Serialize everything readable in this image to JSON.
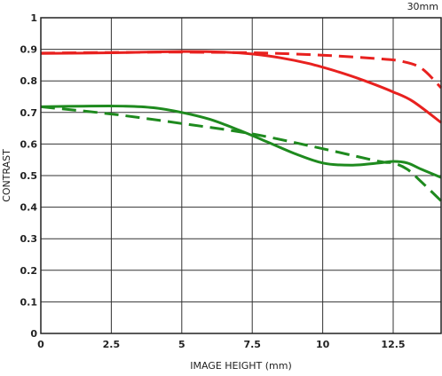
{
  "chart_data": {
    "type": "line",
    "corner_label": "30mm",
    "xlabel": "IMAGE HEIGHT (mm)",
    "ylabel": "CONTRAST",
    "xlim": [
      0,
      14.2
    ],
    "ylim": [
      0,
      1
    ],
    "x_ticks": [
      0,
      2.5,
      5,
      7.5,
      10,
      12.5
    ],
    "x_tick_labels": [
      "0",
      "2.5",
      "5",
      "7.5",
      "10",
      "12.5"
    ],
    "y_ticks": [
      0,
      0.1,
      0.2,
      0.3,
      0.4,
      0.5,
      0.6,
      0.7,
      0.8,
      0.9,
      1
    ],
    "y_tick_labels": [
      "0",
      "0.1",
      "0.2",
      "0.3",
      "0.4",
      "0.5",
      "0.6",
      "0.7",
      "0.8",
      "0.9",
      "1"
    ],
    "grid": true,
    "series": [
      {
        "color": "#e8211f",
        "dash": "solid",
        "points": [
          [
            0,
            0.887
          ],
          [
            2.5,
            0.889
          ],
          [
            5,
            0.893
          ],
          [
            6.5,
            0.891
          ],
          [
            7.5,
            0.885
          ],
          [
            8.5,
            0.873
          ],
          [
            9.5,
            0.855
          ],
          [
            10.5,
            0.83
          ],
          [
            11.5,
            0.8
          ],
          [
            12.5,
            0.765
          ],
          [
            13.2,
            0.735
          ],
          [
            14.2,
            0.668
          ]
        ]
      },
      {
        "color": "#e8211f",
        "dash": "dashed",
        "points": [
          [
            0,
            0.888
          ],
          [
            2.5,
            0.89
          ],
          [
            5,
            0.891
          ],
          [
            7.5,
            0.889
          ],
          [
            9,
            0.885
          ],
          [
            10.5,
            0.879
          ],
          [
            12,
            0.87
          ],
          [
            12.8,
            0.862
          ],
          [
            13.5,
            0.84
          ],
          [
            14.2,
            0.778
          ]
        ]
      },
      {
        "color": "#1e8a1e",
        "dash": "solid",
        "points": [
          [
            0,
            0.718
          ],
          [
            1.5,
            0.72
          ],
          [
            3,
            0.72
          ],
          [
            4,
            0.715
          ],
          [
            5,
            0.7
          ],
          [
            6,
            0.678
          ],
          [
            7,
            0.645
          ],
          [
            8,
            0.608
          ],
          [
            9,
            0.57
          ],
          [
            10,
            0.54
          ],
          [
            11,
            0.533
          ],
          [
            12,
            0.54
          ],
          [
            12.5,
            0.545
          ],
          [
            13,
            0.54
          ],
          [
            13.5,
            0.52
          ],
          [
            14.2,
            0.494
          ]
        ]
      },
      {
        "color": "#1e8a1e",
        "dash": "dashed",
        "points": [
          [
            0,
            0.718
          ],
          [
            2.5,
            0.695
          ],
          [
            5,
            0.665
          ],
          [
            7.5,
            0.632
          ],
          [
            10,
            0.585
          ],
          [
            12,
            0.545
          ],
          [
            12.5,
            0.54
          ],
          [
            13,
            0.52
          ],
          [
            13.5,
            0.48
          ],
          [
            14.2,
            0.42
          ]
        ]
      }
    ]
  }
}
